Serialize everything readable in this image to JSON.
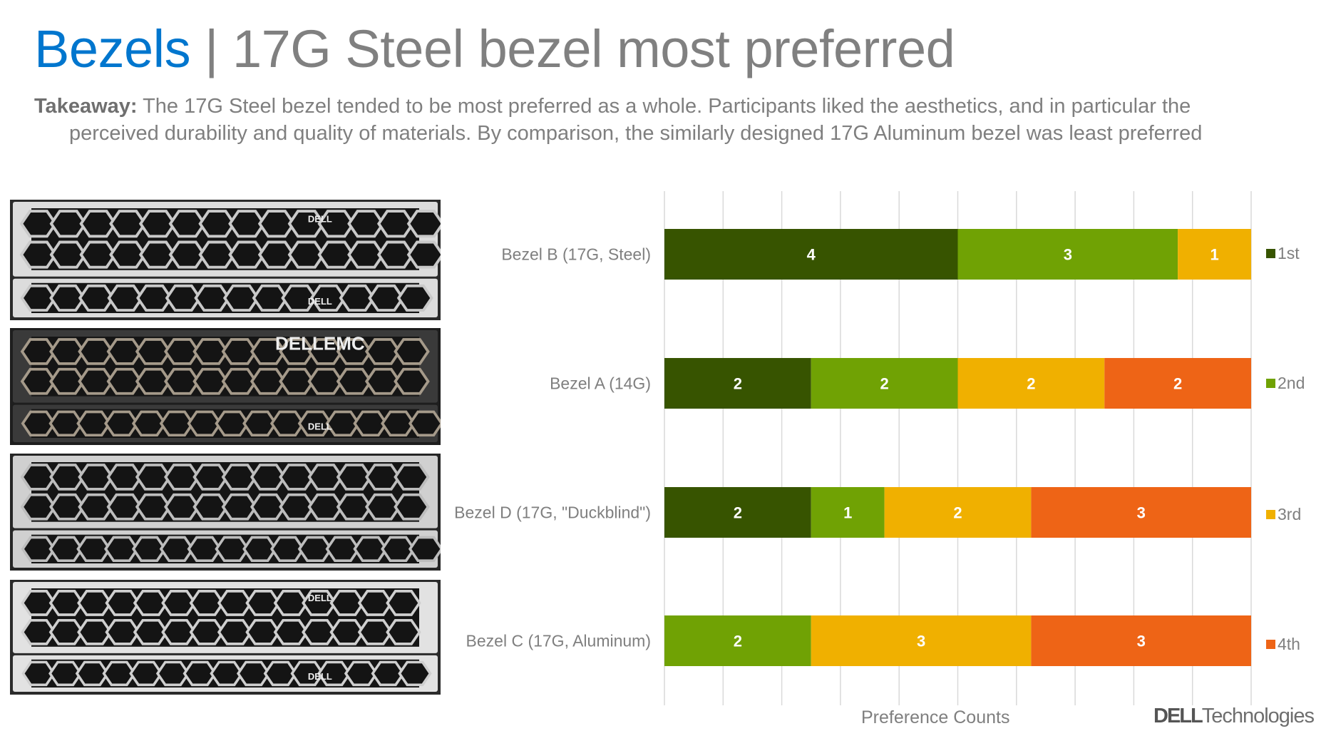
{
  "header": {
    "title_highlight": "Bezels",
    "title_separator": " | ",
    "title_rest": "17G Steel bezel most preferred",
    "takeaway_label": "Takeaway:",
    "takeaway_line1": " The 17G Steel bezel tended to be most preferred as a whole.  Participants liked the aesthetics, and in particular the",
    "takeaway_line2": "perceived durability and quality of materials.  By comparison, the similarly designed 17G Aluminum bezel was least preferred"
  },
  "photos": [
    {
      "top_logo": "DELL",
      "bottom_logo": "DELL",
      "style": "steel"
    },
    {
      "top_logo": "DELLEMC",
      "bottom_logo": "DELL",
      "style": "dark"
    },
    {
      "top_logo": "",
      "bottom_logo": "",
      "style": "duckblind"
    },
    {
      "top_logo": "DELL",
      "bottom_logo": "DELL",
      "style": "aluminum"
    }
  ],
  "chart_data": {
    "type": "bar",
    "orientation": "horizontal",
    "stacked": "100%",
    "categories": [
      "Bezel B (17G, Steel)",
      "Bezel A (14G)",
      "Bezel D (17G, \"Duckblind\")",
      "Bezel C (17G, Aluminum)"
    ],
    "series": [
      {
        "name": "1st",
        "color": "#375400",
        "values": [
          4,
          2,
          2,
          0
        ]
      },
      {
        "name": "2nd",
        "color": "#70a204",
        "values": [
          3,
          2,
          1,
          2
        ]
      },
      {
        "name": "3rd",
        "color": "#f0b000",
        "values": [
          1,
          2,
          2,
          3
        ]
      },
      {
        "name": "4th",
        "color": "#ee6416",
        "values": [
          0,
          2,
          3,
          3
        ]
      }
    ],
    "xlabel": "Preference Counts",
    "grid": true,
    "data_labels": true,
    "legend": "right"
  },
  "footer": {
    "logo_bold": "DELL",
    "logo_rest": "Technologies"
  }
}
